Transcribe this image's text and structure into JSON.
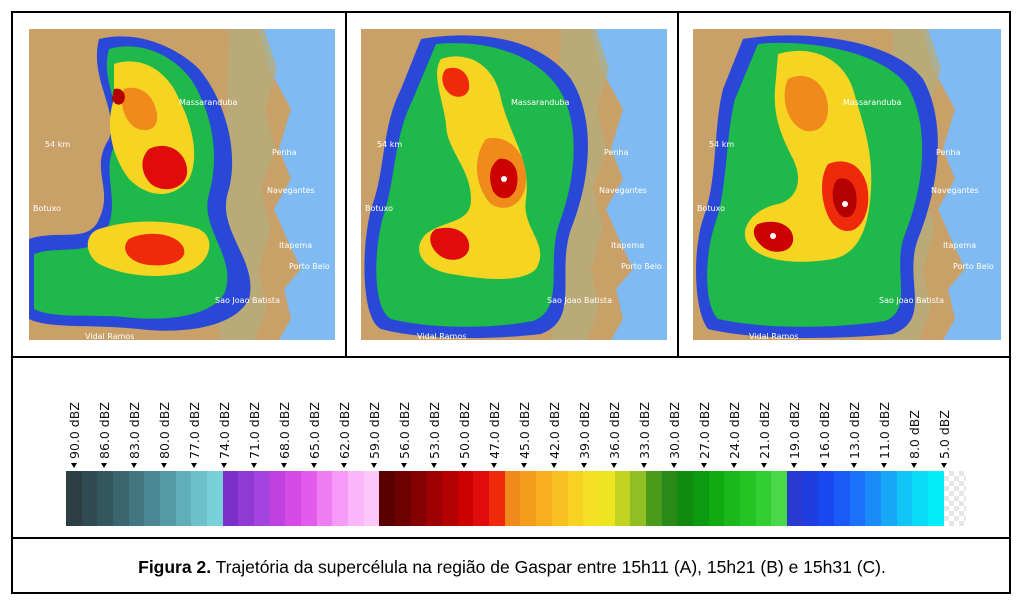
{
  "figure": {
    "caption_label": "Figura 2.",
    "caption_text": " Trajetória da supercélula na região de Gaspar entre 15h11 (A), 15h21 (B) e 15h31 (C)."
  },
  "maps": [
    {
      "panel": "A",
      "labels": {
        "massaranduba": "Massaranduba",
        "range": "54 km",
        "penha": "Penha",
        "navegantes": "Navegantes",
        "botuxo": "Botuxo",
        "itapema": "Itapema",
        "porto_belo": "Porto  Belo",
        "sao_joao_batista": "Sao  Joao  Batista",
        "vidal_ramos": "Vidal  Ramos"
      }
    },
    {
      "panel": "B",
      "labels": {
        "massaranduba": "Massaranduba",
        "range": "54 km",
        "penha": "Penha",
        "navegantes": "Navegantes",
        "botuxo": "Botuxo",
        "itapema": "Itapema",
        "porto_belo": "Porto  Belo",
        "sao_joao_batista": "Sao  Joao  Batista",
        "vidal_ramos": "Vidal  Ramos"
      }
    },
    {
      "panel": "C",
      "labels": {
        "massaranduba": "Massaranduba",
        "range": "54 km",
        "penha": "Penha",
        "navegantes": "Navegantes",
        "botuxo": "Botuxo",
        "itapema": "Itapema",
        "porto_belo": "Porto  Belo",
        "sao_joao_batista": "Sao  Joao  Batista",
        "vidal_ramos": "Vidal  Ramos"
      }
    }
  ],
  "scale": {
    "ticks": [
      "90.0 dBZ",
      "86.0 dBZ",
      "83.0 dBZ",
      "80.0 dBZ",
      "77.0 dBZ",
      "74.0 dBZ",
      "71.0 dBZ",
      "68.0 dBZ",
      "65.0 dBZ",
      "62.0 dBZ",
      "59.0 dBZ",
      "56.0 dBZ",
      "53.0 dBZ",
      "50.0 dBZ",
      "47.0 dBZ",
      "45.0 dBZ",
      "42.0 dBZ",
      "39.0 dBZ",
      "36.0 dBZ",
      "33.0 dBZ",
      "30.0 dBZ",
      "27.0 dBZ",
      "24.0 dBZ",
      "21.0 dBZ",
      "19.0 dBZ",
      "16.0 dBZ",
      "13.0 dBZ",
      "11.0 dBZ",
      "8.0 dBZ",
      "5.0 dBZ"
    ],
    "colors": [
      "#2c3f43",
      "#2f4a50",
      "#34575f",
      "#3a6670",
      "#427681",
      "#4b8893",
      "#559aa5",
      "#60aeb8",
      "#6cc1ca",
      "#79d1d8",
      "#7b2fc8",
      "#8f3ad3",
      "#a244dd",
      "#c040e0",
      "#d64be6",
      "#e35bec",
      "#ee7df2",
      "#f59af6",
      "#fab6f8",
      "#fcc8fa",
      "#5a0000",
      "#6e0000",
      "#850000",
      "#9c0000",
      "#b30000",
      "#cc0000",
      "#e00b0b",
      "#ee2a0a",
      "#f08a1a",
      "#f49c1c",
      "#f8ae1e",
      "#f8c020",
      "#f8d222",
      "#f5df22",
      "#eee522",
      "#c2d322",
      "#8fbf22",
      "#4a9a1c",
      "#2a8a18",
      "#118a10",
      "#0c9a10",
      "#12aa12",
      "#1ab81a",
      "#22c522",
      "#32cf32",
      "#48d848",
      "#2a3ad0",
      "#1f3ee2",
      "#1a48f0",
      "#1a5af6",
      "#1a72f8",
      "#1a8cf8",
      "#18a8f8",
      "#12c4f8",
      "#0adcf8",
      "#04eefa"
    ]
  }
}
